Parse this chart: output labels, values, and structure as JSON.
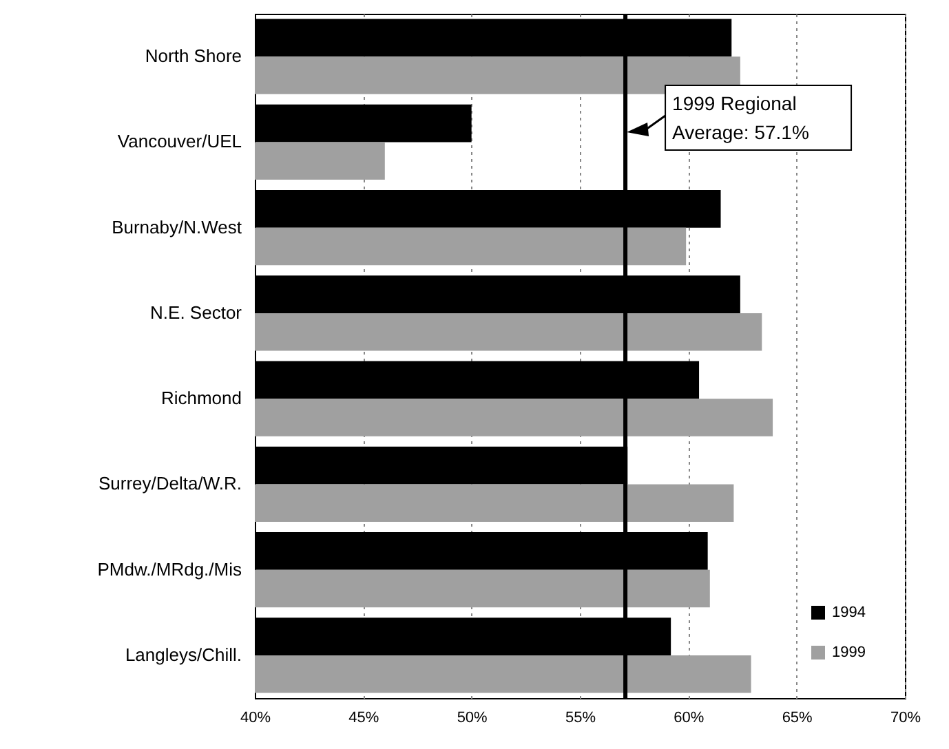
{
  "chart_data": {
    "type": "bar",
    "orientation": "horizontal",
    "categories": [
      "North Shore",
      "Vancouver/UEL",
      "Burnaby/N.West",
      "N.E. Sector",
      "Richmond",
      "Surrey/Delta/W.R.",
      "PMdw./MRdg./Mis",
      "Langleys/Chill."
    ],
    "series": [
      {
        "name": "1994",
        "color": "#000000",
        "values": [
          62.0,
          50.0,
          61.5,
          62.4,
          60.5,
          57.2,
          60.9,
          59.2
        ]
      },
      {
        "name": "1999",
        "color": "#a0a0a0",
        "values": [
          62.4,
          46.0,
          59.9,
          63.4,
          63.9,
          62.1,
          61.0,
          62.9
        ]
      }
    ],
    "xlim": [
      40,
      70
    ],
    "xticks": [
      {
        "value": 40,
        "label": "40%"
      },
      {
        "value": 45,
        "label": "45%"
      },
      {
        "value": 50,
        "label": "50%"
      },
      {
        "value": 55,
        "label": "55%"
      },
      {
        "value": 60,
        "label": "60%"
      },
      {
        "value": 65,
        "label": "65%"
      },
      {
        "value": 70,
        "label": "70%"
      }
    ],
    "ref_lines": [
      {
        "axis": "x",
        "value": 57.1,
        "label": "1999 Regional Average: 57.1%",
        "color": "#000000"
      }
    ],
    "grid": "x",
    "legend": "bottom right"
  }
}
